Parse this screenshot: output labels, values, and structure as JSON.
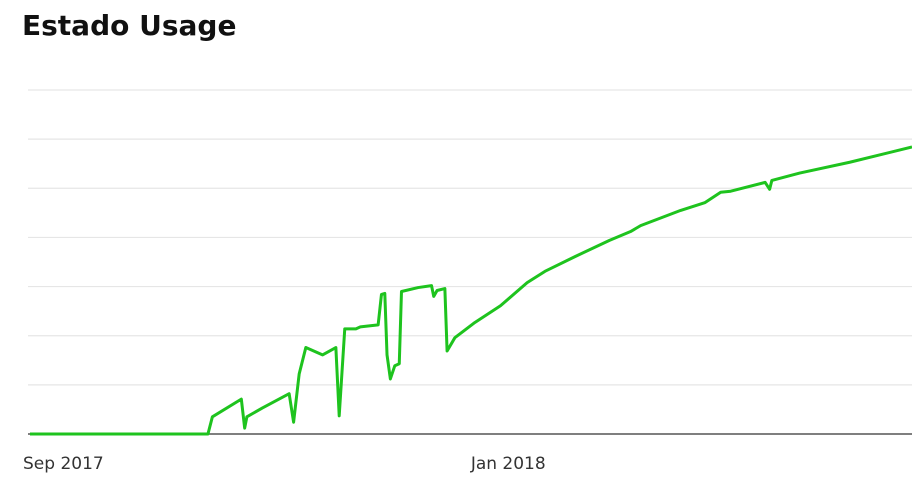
{
  "chart_data": {
    "type": "line",
    "title": "Estado Usage",
    "x": [
      -0.3,
      1.3,
      1.34,
      1.6,
      1.63,
      1.65,
      1.79,
      2.03,
      2.07,
      2.12,
      2.18,
      2.33,
      2.45,
      2.48,
      2.53,
      2.63,
      2.67,
      2.83,
      2.86,
      2.89,
      2.91,
      2.94,
      2.98,
      3.02,
      3.04,
      3.19,
      3.31,
      3.33,
      3.36,
      3.43,
      3.45,
      3.52,
      3.7,
      3.93,
      4.17,
      4.33,
      4.6,
      4.91,
      5.1,
      5.19,
      5.55,
      5.77,
      5.91,
      6.0,
      6.31,
      6.35,
      6.37,
      6.62,
      7.07,
      7.63
    ],
    "series": [
      {
        "color": "#1ec31e",
        "values": [
          0,
          0,
          0.35,
          0.71,
          0.12,
          0.35,
          0.53,
          0.82,
          0.24,
          1.22,
          1.76,
          1.61,
          1.76,
          0.37,
          2.14,
          2.14,
          2.18,
          2.22,
          2.84,
          2.86,
          1.61,
          1.12,
          1.39,
          1.43,
          2.9,
          2.98,
          3.02,
          2.8,
          2.92,
          2.96,
          1.69,
          1.96,
          2.27,
          2.61,
          3.08,
          3.31,
          3.61,
          3.94,
          4.12,
          4.24,
          4.55,
          4.71,
          4.92,
          4.94,
          5.12,
          4.98,
          5.16,
          5.31,
          5.53,
          5.84
        ]
      }
    ],
    "xlim": [
      -0.3,
      7.63
    ],
    "xticks": [
      {
        "value": 0,
        "label": "Sep 2017"
      },
      {
        "value": 4,
        "label": "Jan 2018"
      }
    ],
    "ylim": [
      0,
      7
    ],
    "yticks": [
      0,
      1,
      2,
      3,
      4,
      5,
      6,
      7
    ],
    "grid": true
  }
}
